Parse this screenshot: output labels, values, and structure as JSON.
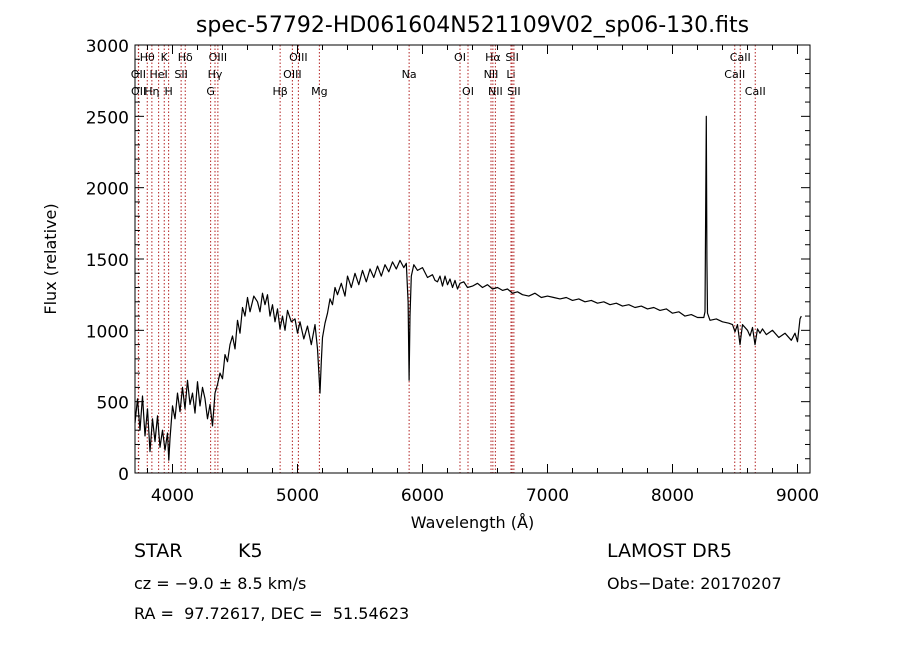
{
  "chart_data": {
    "type": "line",
    "title": "spec-57792-HD061604N521109V02_sp06-130.fits",
    "xlabel": "Wavelength (Å)",
    "ylabel": "Flux (relative)",
    "xlim": [
      3700,
      9100
    ],
    "ylim": [
      0,
      3000
    ],
    "xticks": [
      "4000",
      "5000",
      "6000",
      "7000",
      "8000",
      "9000"
    ],
    "yticks": [
      "0",
      "500",
      "1000",
      "1500",
      "2000",
      "2500",
      "3000"
    ],
    "grid": false,
    "series": [
      {
        "color": "#000000",
        "points": [
          [
            3700,
            350
          ],
          [
            3720,
            520
          ],
          [
            3740,
            300
          ],
          [
            3760,
            540
          ],
          [
            3780,
            260
          ],
          [
            3800,
            450
          ],
          [
            3820,
            150
          ],
          [
            3840,
            380
          ],
          [
            3860,
            220
          ],
          [
            3880,
            400
          ],
          [
            3900,
            180
          ],
          [
            3920,
            300
          ],
          [
            3940,
            160
          ],
          [
            3960,
            280
          ],
          [
            3970,
            90
          ],
          [
            3980,
            240
          ],
          [
            4000,
            470
          ],
          [
            4020,
            380
          ],
          [
            4040,
            560
          ],
          [
            4060,
            430
          ],
          [
            4080,
            600
          ],
          [
            4100,
            450
          ],
          [
            4120,
            650
          ],
          [
            4140,
            480
          ],
          [
            4160,
            560
          ],
          [
            4180,
            420
          ],
          [
            4200,
            640
          ],
          [
            4220,
            470
          ],
          [
            4240,
            600
          ],
          [
            4260,
            520
          ],
          [
            4280,
            380
          ],
          [
            4300,
            480
          ],
          [
            4320,
            330
          ],
          [
            4340,
            560
          ],
          [
            4360,
            620
          ],
          [
            4380,
            700
          ],
          [
            4400,
            660
          ],
          [
            4420,
            830
          ],
          [
            4440,
            780
          ],
          [
            4460,
            900
          ],
          [
            4480,
            960
          ],
          [
            4500,
            870
          ],
          [
            4520,
            1070
          ],
          [
            4540,
            980
          ],
          [
            4560,
            1160
          ],
          [
            4580,
            1100
          ],
          [
            4600,
            1230
          ],
          [
            4620,
            1130
          ],
          [
            4650,
            1240
          ],
          [
            4680,
            1200
          ],
          [
            4700,
            1130
          ],
          [
            4720,
            1260
          ],
          [
            4740,
            1180
          ],
          [
            4760,
            1250
          ],
          [
            4780,
            1100
          ],
          [
            4800,
            1180
          ],
          [
            4820,
            1060
          ],
          [
            4840,
            1150
          ],
          [
            4860,
            1010
          ],
          [
            4880,
            1100
          ],
          [
            4900,
            1000
          ],
          [
            4920,
            1140
          ],
          [
            4950,
            1060
          ],
          [
            4980,
            1080
          ],
          [
            5000,
            980
          ],
          [
            5020,
            1060
          ],
          [
            5050,
            940
          ],
          [
            5080,
            1030
          ],
          [
            5110,
            900
          ],
          [
            5140,
            1040
          ],
          [
            5160,
            870
          ],
          [
            5180,
            560
          ],
          [
            5190,
            780
          ],
          [
            5200,
            950
          ],
          [
            5220,
            1050
          ],
          [
            5240,
            1120
          ],
          [
            5260,
            1220
          ],
          [
            5280,
            1180
          ],
          [
            5300,
            1300
          ],
          [
            5320,
            1250
          ],
          [
            5350,
            1330
          ],
          [
            5380,
            1240
          ],
          [
            5400,
            1380
          ],
          [
            5430,
            1300
          ],
          [
            5460,
            1400
          ],
          [
            5490,
            1320
          ],
          [
            5520,
            1420
          ],
          [
            5550,
            1340
          ],
          [
            5580,
            1430
          ],
          [
            5610,
            1370
          ],
          [
            5640,
            1450
          ],
          [
            5670,
            1380
          ],
          [
            5700,
            1460
          ],
          [
            5730,
            1410
          ],
          [
            5760,
            1480
          ],
          [
            5790,
            1430
          ],
          [
            5820,
            1490
          ],
          [
            5850,
            1440
          ],
          [
            5870,
            1470
          ],
          [
            5885,
            1200
          ],
          [
            5893,
            650
          ],
          [
            5900,
            1100
          ],
          [
            5910,
            1380
          ],
          [
            5930,
            1460
          ],
          [
            5960,
            1420
          ],
          [
            6000,
            1440
          ],
          [
            6040,
            1370
          ],
          [
            6080,
            1390
          ],
          [
            6100,
            1350
          ],
          [
            6120,
            1340
          ],
          [
            6140,
            1380
          ],
          [
            6160,
            1310
          ],
          [
            6180,
            1380
          ],
          [
            6200,
            1320
          ],
          [
            6220,
            1360
          ],
          [
            6240,
            1300
          ],
          [
            6260,
            1350
          ],
          [
            6280,
            1290
          ],
          [
            6300,
            1330
          ],
          [
            6330,
            1340
          ],
          [
            6360,
            1300
          ],
          [
            6400,
            1310
          ],
          [
            6440,
            1330
          ],
          [
            6480,
            1300
          ],
          [
            6520,
            1320
          ],
          [
            6560,
            1290
          ],
          [
            6600,
            1300
          ],
          [
            6640,
            1280
          ],
          [
            6680,
            1290
          ],
          [
            6720,
            1260
          ],
          [
            6760,
            1270
          ],
          [
            6800,
            1250
          ],
          [
            6850,
            1240
          ],
          [
            6900,
            1260
          ],
          [
            6950,
            1230
          ],
          [
            7000,
            1240
          ],
          [
            7050,
            1230
          ],
          [
            7100,
            1220
          ],
          [
            7150,
            1230
          ],
          [
            7200,
            1210
          ],
          [
            7250,
            1220
          ],
          [
            7300,
            1200
          ],
          [
            7350,
            1210
          ],
          [
            7400,
            1190
          ],
          [
            7450,
            1200
          ],
          [
            7500,
            1180
          ],
          [
            7550,
            1190
          ],
          [
            7600,
            1170
          ],
          [
            7650,
            1180
          ],
          [
            7700,
            1160
          ],
          [
            7750,
            1170
          ],
          [
            7800,
            1150
          ],
          [
            7850,
            1160
          ],
          [
            7900,
            1140
          ],
          [
            7950,
            1150
          ],
          [
            8000,
            1120
          ],
          [
            8050,
            1130
          ],
          [
            8100,
            1100
          ],
          [
            8150,
            1110
          ],
          [
            8200,
            1090
          ],
          [
            8250,
            1090
          ],
          [
            8260,
            1130
          ],
          [
            8270,
            2500
          ],
          [
            8275,
            1500
          ],
          [
            8280,
            1120
          ],
          [
            8300,
            1070
          ],
          [
            8350,
            1080
          ],
          [
            8400,
            1060
          ],
          [
            8450,
            1050
          ],
          [
            8480,
            1040
          ],
          [
            8500,
            990
          ],
          [
            8520,
            1040
          ],
          [
            8540,
            900
          ],
          [
            8560,
            1040
          ],
          [
            8600,
            1000
          ],
          [
            8620,
            960
          ],
          [
            8640,
            1020
          ],
          [
            8660,
            900
          ],
          [
            8680,
            1010
          ],
          [
            8700,
            980
          ],
          [
            8720,
            1010
          ],
          [
            8750,
            970
          ],
          [
            8800,
            1000
          ],
          [
            8850,
            950
          ],
          [
            8900,
            980
          ],
          [
            8950,
            930
          ],
          [
            8980,
            980
          ],
          [
            9000,
            920
          ],
          [
            9020,
            1080
          ],
          [
            9030,
            1100
          ]
        ]
      }
    ],
    "line_markers": [
      {
        "label": "Hθ",
        "wl": 3798,
        "row": 0
      },
      {
        "label": "K",
        "wl": 3934,
        "row": 0
      },
      {
        "label": "Hδ",
        "wl": 4102,
        "row": 0
      },
      {
        "label": "OIII",
        "wl": 4363,
        "row": 0
      },
      {
        "label": "OIII",
        "wl": 5007,
        "row": 0
      },
      {
        "label": "OI",
        "wl": 6300,
        "row": 0
      },
      {
        "label": "Hα",
        "wl": 6563,
        "row": 0
      },
      {
        "label": "SII",
        "wl": 6717,
        "row": 0
      },
      {
        "label": "CaII",
        "wl": 8542,
        "row": 0
      },
      {
        "label": "OII",
        "wl": 3727,
        "row": 1
      },
      {
        "label": "HeI",
        "wl": 3889,
        "row": 1
      },
      {
        "label": "SII",
        "wl": 4069,
        "row": 1
      },
      {
        "label": "Hγ",
        "wl": 4340,
        "row": 1
      },
      {
        "label": "OIII",
        "wl": 4959,
        "row": 1
      },
      {
        "label": "Na",
        "wl": 5893,
        "row": 1
      },
      {
        "label": "NII",
        "wl": 6548,
        "row": 1
      },
      {
        "label": "Li",
        "wl": 6708,
        "row": 1
      },
      {
        "label": "CaII",
        "wl": 8498,
        "row": 1
      },
      {
        "label": "OII",
        "wl": 3729,
        "row": 2
      },
      {
        "label": "Hη",
        "wl": 3835,
        "row": 2
      },
      {
        "label": "H",
        "wl": 3969,
        "row": 2
      },
      {
        "label": "G",
        "wl": 4305,
        "row": 2
      },
      {
        "label": "Hβ",
        "wl": 4861,
        "row": 2
      },
      {
        "label": "Mg",
        "wl": 5175,
        "row": 2
      },
      {
        "label": "OI",
        "wl": 6364,
        "row": 2
      },
      {
        "label": "NII",
        "wl": 6583,
        "row": 2
      },
      {
        "label": "SII",
        "wl": 6731,
        "row": 2
      },
      {
        "label": "CaII",
        "wl": 8662,
        "row": 2
      }
    ],
    "marker_color": "#b22222"
  },
  "info": {
    "class_label": "STAR",
    "subclass": "K5",
    "survey": "LAMOST DR5",
    "cz": "cz = −9.0 ± 8.5 km/s",
    "obs_date": "Obs−Date: 20170207",
    "radec": "RA =  97.72617, DEC =  51.54623"
  }
}
